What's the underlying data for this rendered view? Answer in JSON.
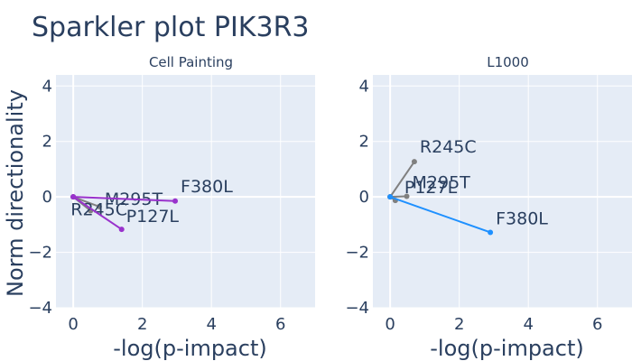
{
  "title": "Sparkler plot PIK3R3",
  "shared": {
    "ylabel": "Norm directionality",
    "xlabel": "-log(p-impact)",
    "xlim": [
      -0.5,
      7
    ],
    "ylim": [
      -4,
      4.4
    ],
    "xticks": [
      0,
      2,
      4,
      6
    ],
    "yticks": [
      -4,
      -2,
      0,
      2,
      4
    ],
    "grid": true
  },
  "chart_data": [
    {
      "type": "line",
      "title": "Cell Painting",
      "xlabel": "-log(p-impact)",
      "ylabel": "Norm directionality",
      "xlim": [
        -0.5,
        7
      ],
      "ylim": [
        -4,
        4.4
      ],
      "series": [
        {
          "name": "M295T",
          "x": [
            0,
            0.75
          ],
          "y": [
            0,
            -0.35
          ],
          "color": "#808080"
        },
        {
          "name": "R245C",
          "x": [
            0,
            0.5
          ],
          "y": [
            0,
            -0.5
          ],
          "color": "#808080"
        },
        {
          "name": "P127L",
          "x": [
            0,
            1.4
          ],
          "y": [
            0,
            -1.17
          ],
          "color": "#9932cc"
        },
        {
          "name": "F380L",
          "x": [
            0,
            2.95
          ],
          "y": [
            0,
            -0.15
          ],
          "color": "#9932cc"
        }
      ]
    },
    {
      "type": "line",
      "title": "L1000",
      "xlabel": "-log(p-impact)",
      "ylabel": "",
      "xlim": [
        -0.5,
        7
      ],
      "ylim": [
        -4,
        4.4
      ],
      "series": [
        {
          "name": "R245C",
          "x": [
            0,
            0.7
          ],
          "y": [
            0,
            1.27
          ],
          "color": "#808080"
        },
        {
          "name": "M295T",
          "x": [
            0,
            0.48
          ],
          "y": [
            0,
            0.02
          ],
          "color": "#808080"
        },
        {
          "name": "P127L",
          "x": [
            0,
            0.15
          ],
          "y": [
            0,
            -0.13
          ],
          "color": "#808080"
        },
        {
          "name": "F380L",
          "x": [
            0,
            2.9
          ],
          "y": [
            0,
            -1.28
          ],
          "color": "#1e90ff"
        }
      ]
    }
  ]
}
